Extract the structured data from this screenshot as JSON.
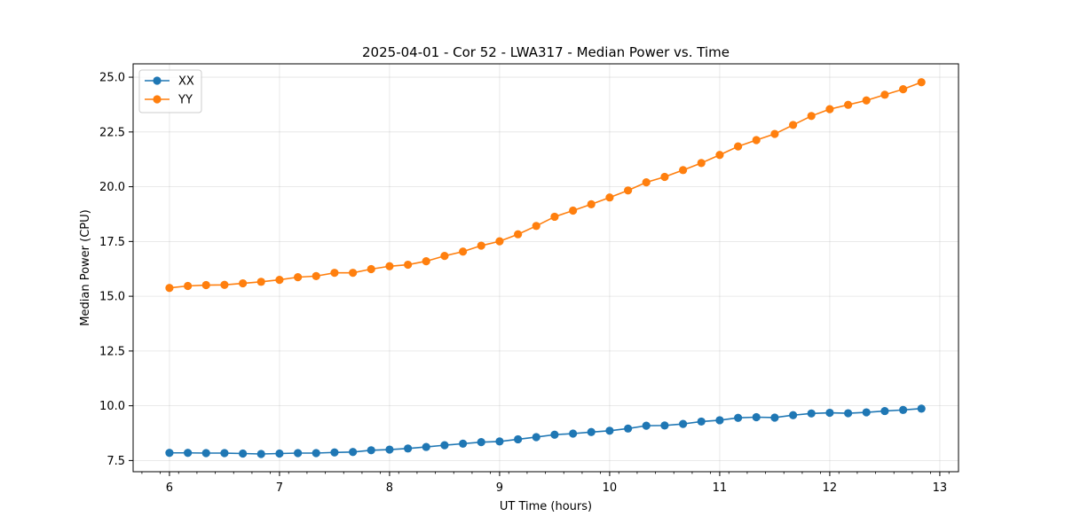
{
  "chart_data": {
    "type": "line",
    "title": "2025-04-01 - Cor 52 - LWA317 - Median Power vs. Time",
    "xlabel": "UT Time (hours)",
    "ylabel": "Median Power (CPU)",
    "xlim": [
      5.67,
      13.17
    ],
    "ylim": [
      6.99,
      25.61
    ],
    "xticks": [
      6,
      7,
      8,
      9,
      10,
      11,
      12,
      13
    ],
    "xtick_labels": [
      "6",
      "7",
      "8",
      "9",
      "10",
      "11",
      "12",
      "13"
    ],
    "yticks": [
      7.5,
      10.0,
      12.5,
      15.0,
      17.5,
      20.0,
      22.5,
      25.0
    ],
    "ytick_labels": [
      "7.5",
      "10.0",
      "12.5",
      "15.0",
      "17.5",
      "20.0",
      "22.5",
      "25.0"
    ],
    "grid": true,
    "legend_position": "top-left",
    "x": [
      6.0,
      6.167,
      6.333,
      6.5,
      6.667,
      6.833,
      7.0,
      7.167,
      7.333,
      7.5,
      7.667,
      7.833,
      8.0,
      8.167,
      8.333,
      8.5,
      8.667,
      8.833,
      9.0,
      9.167,
      9.333,
      9.5,
      9.667,
      9.833,
      10.0,
      10.167,
      10.333,
      10.5,
      10.667,
      10.833,
      11.0,
      11.167,
      11.333,
      11.5,
      11.667,
      11.833,
      12.0,
      12.167,
      12.333,
      12.5,
      12.667,
      12.833
    ],
    "series": [
      {
        "name": "XX",
        "color": "#1f77b4",
        "values": [
          7.85,
          7.85,
          7.84,
          7.84,
          7.82,
          7.8,
          7.82,
          7.84,
          7.84,
          7.87,
          7.89,
          7.97,
          8.0,
          8.05,
          8.12,
          8.2,
          8.27,
          8.34,
          8.37,
          8.47,
          8.57,
          8.68,
          8.73,
          8.8,
          8.86,
          8.96,
          9.09,
          9.1,
          9.17,
          9.28,
          9.34,
          9.45,
          9.48,
          9.46,
          9.57,
          9.65,
          9.68,
          9.66,
          9.7,
          9.76,
          9.81,
          9.87
        ]
      },
      {
        "name": "YY",
        "color": "#ff7f0e",
        "values": [
          15.38,
          15.47,
          15.51,
          15.52,
          15.59,
          15.66,
          15.75,
          15.87,
          15.92,
          16.07,
          16.07,
          16.24,
          16.37,
          16.44,
          16.6,
          16.84,
          17.04,
          17.31,
          17.51,
          17.83,
          18.21,
          18.63,
          18.91,
          19.2,
          19.51,
          19.83,
          20.2,
          20.45,
          20.76,
          21.08,
          21.45,
          21.84,
          22.13,
          22.41,
          22.82,
          23.23,
          23.54,
          23.74,
          23.94,
          24.2,
          24.45,
          24.77
        ]
      }
    ]
  }
}
